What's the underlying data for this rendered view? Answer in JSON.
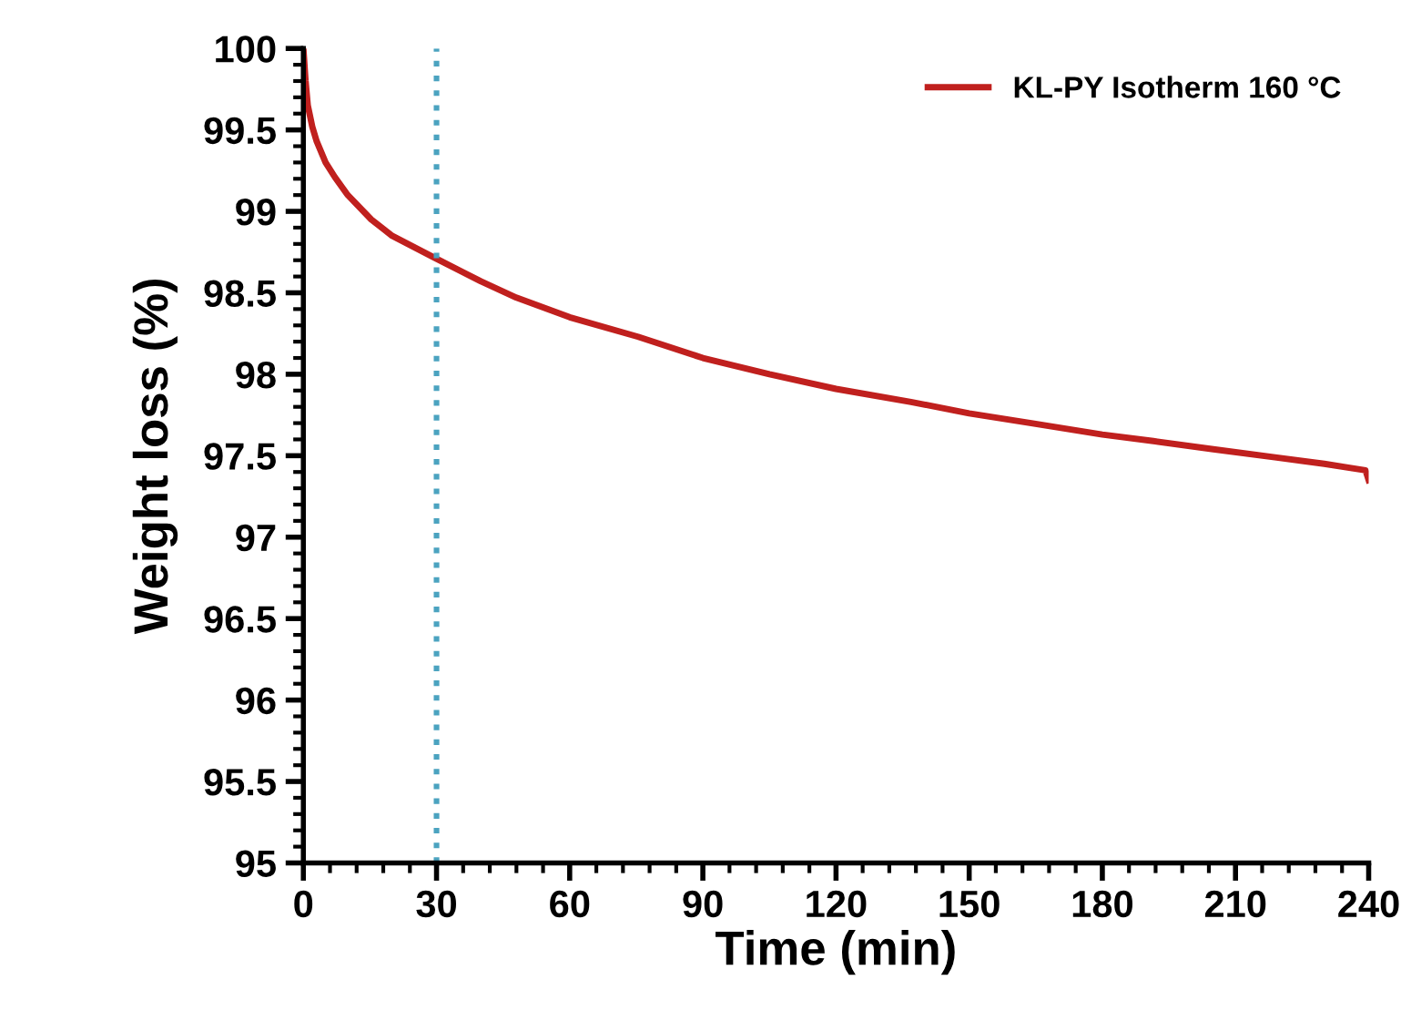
{
  "chart_data": {
    "type": "line",
    "xlabel": "Time (min)",
    "ylabel": "Weight loss (%)",
    "xlim": [
      0,
      240
    ],
    "ylim": [
      95,
      100
    ],
    "xticks": [
      0,
      30,
      60,
      90,
      120,
      150,
      180,
      210,
      240
    ],
    "yticks": [
      95,
      {
        "value": 95.5,
        "label": "95.5"
      },
      96,
      {
        "value": 96.5,
        "label": "96.5"
      },
      97,
      {
        "value": 97.5,
        "label": "97.5"
      },
      98,
      {
        "value": 98.5,
        "label": "98.5"
      },
      99,
      {
        "value": 99.5,
        "label": "99.5"
      },
      100
    ],
    "series": [
      {
        "name": "KL-PY Isotherm 160 °C",
        "color": "#c0201e",
        "x": [
          0,
          0.5,
          1,
          2,
          3,
          5,
          7.1,
          10,
          15.3,
          20,
          29.2,
          40,
          48,
          60,
          75.4,
          90,
          105,
          120,
          136.9,
          150,
          164,
          180,
          191.5,
          205,
          218.9,
          230,
          239.3,
          240
        ],
        "values": [
          100,
          99.8,
          99.65,
          99.52,
          99.43,
          99.3,
          99.21,
          99.1,
          98.95,
          98.85,
          98.72,
          98.57,
          98.47,
          98.35,
          98.23,
          98.1,
          98.0,
          97.91,
          97.83,
          97.76,
          97.7,
          97.63,
          97.59,
          97.54,
          97.49,
          97.45,
          97.41,
          97.35
        ]
      }
    ],
    "ref_lines": [
      {
        "axis": "x",
        "value": 30,
        "color": "#4ba3c0",
        "line_style": "dotted"
      }
    ],
    "legend": "top right",
    "grid": false,
    "marker": "none",
    "line_style": "solid"
  }
}
